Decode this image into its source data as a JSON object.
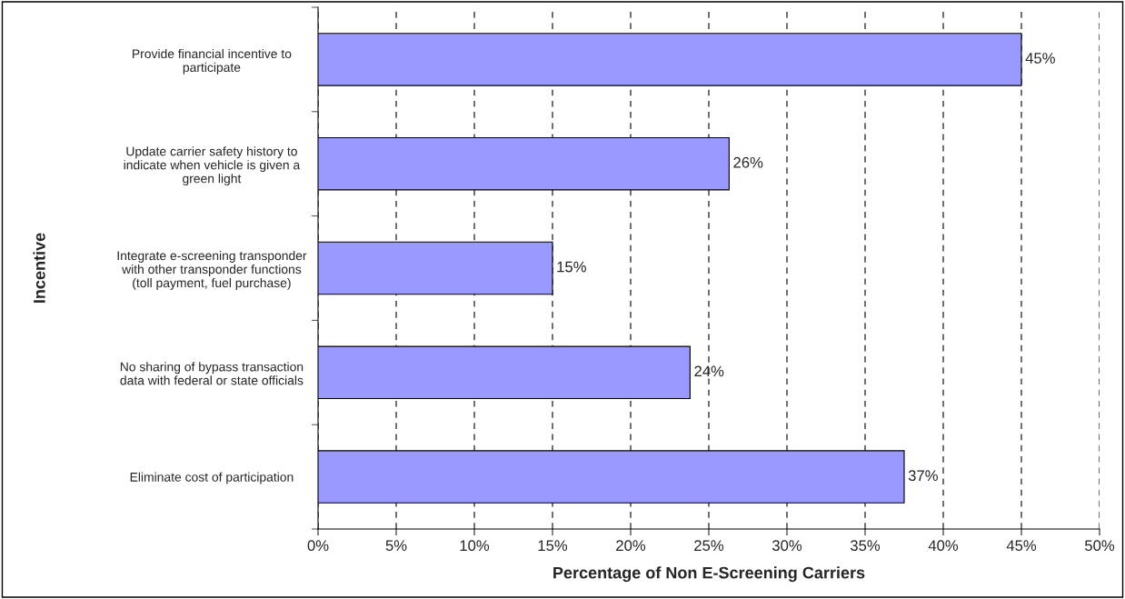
{
  "chart_data": {
    "type": "bar",
    "orientation": "horizontal",
    "xlabel": "Percentage of Non E-Screening Carriers",
    "ylabel": "Incentive",
    "categories": [
      "Provide financial incentive to\nparticipate",
      "Update carrier safety history to\nindicate when vehicle is given a\ngreen light",
      "Integrate e-screening transponder\nwith other transponder functions\n(toll payment, fuel purchase)",
      "No sharing of bypass transaction\ndata with federal or state officials",
      "Eliminate cost of participation"
    ],
    "values": [
      45,
      26.3,
      15,
      23.8,
      37.5
    ],
    "value_labels": [
      "45%",
      "26%",
      "15%",
      "24%",
      "37%"
    ],
    "color": "#9999ff",
    "xlim": [
      0,
      50
    ],
    "xticks": [
      {
        "value": 0,
        "label": "0%"
      },
      {
        "value": 5,
        "label": "5%"
      },
      {
        "value": 10,
        "label": "10%"
      },
      {
        "value": 15,
        "label": "15%"
      },
      {
        "value": 20,
        "label": "20%"
      },
      {
        "value": 25,
        "label": "25%"
      },
      {
        "value": 30,
        "label": "30%"
      },
      {
        "value": 35,
        "label": "35%"
      },
      {
        "value": 40,
        "label": "40%"
      },
      {
        "value": 45,
        "label": "45%"
      },
      {
        "value": 50,
        "label": "50%"
      }
    ],
    "grid": "x"
  }
}
